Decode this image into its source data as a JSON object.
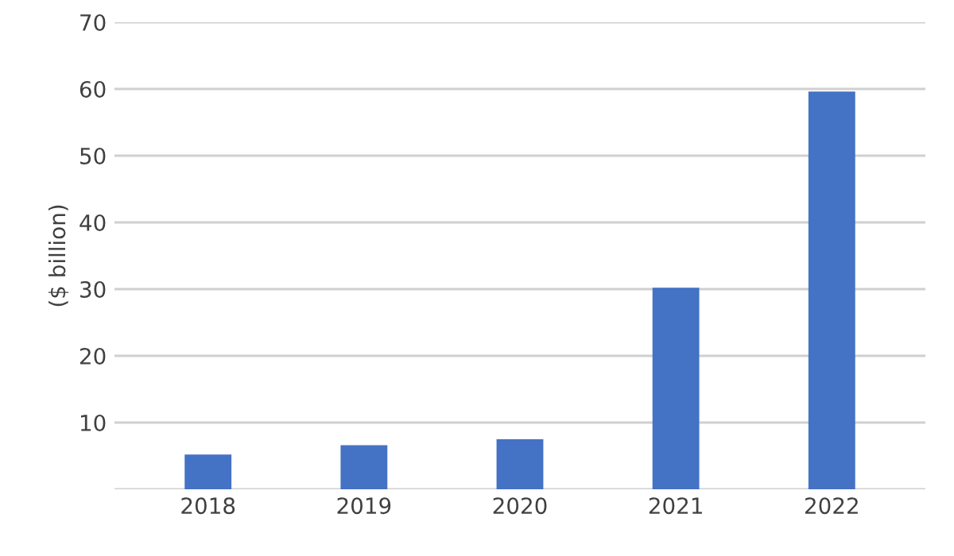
{
  "chart_data": {
    "type": "bar",
    "ylabel": "($ billion)",
    "categories": [
      "2018",
      "2019",
      "2020",
      "2021",
      "2022"
    ],
    "values": [
      5.2,
      6.6,
      7.5,
      30.2,
      59.6
    ],
    "color": "#4472c4",
    "ylim": [
      0,
      70
    ],
    "yticks": [
      {
        "value": 0,
        "label": null
      },
      10,
      20,
      30,
      40,
      50,
      60,
      70
    ],
    "grid": "y"
  }
}
